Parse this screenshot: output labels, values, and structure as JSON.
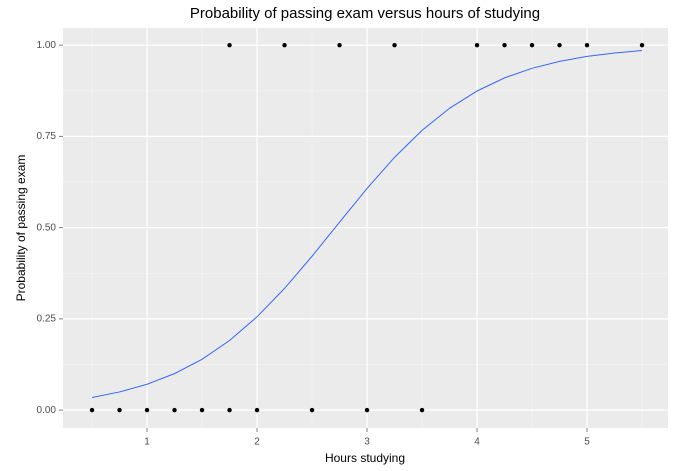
{
  "chart_data": {
    "type": "scatter",
    "title": "Probability of passing exam versus hours of studying",
    "x_label": "Hours studying",
    "y_label": "Probability of passing exam",
    "xlim": [
      0.236,
      5.736
    ],
    "ylim": [
      -0.049,
      1.047
    ],
    "xticks": [
      1,
      2,
      3,
      4,
      5
    ],
    "yticks": [
      {
        "value": 0,
        "label": "0.00"
      },
      {
        "value": 0.25,
        "label": "0.25"
      },
      {
        "value": 0.5,
        "label": "0.50"
      },
      {
        "value": 0.75,
        "label": "0.75"
      },
      {
        "value": 1,
        "label": "1.00"
      }
    ],
    "grid": true,
    "series": [
      {
        "type": "scatter",
        "color": "#000000",
        "x": [
          0.5,
          0.75,
          1.0,
          1.25,
          1.5,
          1.75,
          1.75,
          2.0,
          2.25,
          2.5,
          2.75,
          3.0,
          3.25,
          3.5,
          4.0,
          4.25,
          4.5,
          4.75,
          5.0,
          5.5
        ],
        "values": [
          0,
          0,
          0,
          0,
          0,
          0,
          1,
          0,
          1,
          0,
          1,
          0,
          1,
          0,
          1,
          1,
          1,
          1,
          1,
          1
        ]
      },
      {
        "type": "line",
        "color": "#3366ff",
        "x": [
          0.5,
          0.75,
          1.0,
          1.25,
          1.5,
          1.75,
          2.0,
          2.25,
          2.5,
          2.75,
          3.0,
          3.25,
          3.5,
          3.75,
          4.0,
          4.25,
          4.5,
          4.75,
          5.0,
          5.25,
          5.5
        ],
        "values": [
          0.0347,
          0.0498,
          0.0709,
          0.1,
          0.1393,
          0.1908,
          0.2557,
          0.3335,
          0.4216,
          0.515,
          0.6073,
          0.6926,
          0.7665,
          0.827,
          0.8744,
          0.9103,
          0.9366,
          0.9556,
          0.9691,
          0.9786,
          0.9852
        ]
      }
    ]
  }
}
